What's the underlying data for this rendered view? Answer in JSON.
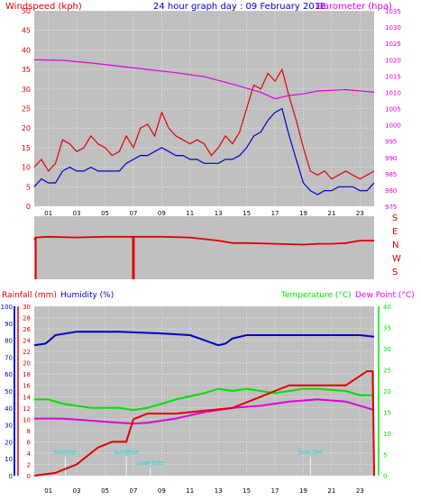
{
  "title": "24 hour graph day : 09 February 2018",
  "panel1": {
    "left_label": "Windspeed (kph)",
    "right_label": "Barometer (hpa)"
  },
  "panel3": {
    "label_rain": "Rainfall (mm)",
    "label_hum": "Humidity (%)",
    "label_temp": "Temperature (°C)",
    "label_dew": "Dew Point (°C)"
  },
  "colors": {
    "red": "#e00000",
    "blue": "#0000c8",
    "magenta": "#e000e0",
    "green": "#00e000",
    "gray": "#c0c0c0",
    "cyan": "#00e0e0"
  },
  "chart_data": [
    {
      "type": "line",
      "xlim": [
        0,
        24
      ],
      "x_ticks": [
        "01",
        "03",
        "05",
        "07",
        "09",
        "11",
        "13",
        "15",
        "17",
        "19",
        "21",
        "23"
      ],
      "x_tick_values": [
        1,
        3,
        5,
        7,
        9,
        11,
        13,
        15,
        17,
        19,
        21,
        23
      ],
      "y_left": {
        "label": "Windspeed (kph)",
        "ylim": [
          0,
          50
        ],
        "ticks": [
          0,
          5,
          10,
          15,
          20,
          25,
          30,
          35,
          40,
          45,
          50
        ]
      },
      "y_right": {
        "label": "Barometer (hpa)",
        "ylim": [
          975,
          1035
        ],
        "ticks": [
          975,
          980,
          985,
          990,
          995,
          1000,
          1005,
          1010,
          1015,
          1020,
          1025,
          1030,
          1035
        ]
      },
      "series": [
        {
          "color": "red",
          "axis": "left",
          "x": [
            0,
            0.5,
            1,
            1.5,
            2,
            2.5,
            3,
            3.5,
            4,
            4.5,
            5,
            5.5,
            6,
            6.5,
            7,
            7.5,
            8,
            8.5,
            9,
            9.5,
            10,
            10.5,
            11,
            11.5,
            12,
            12.5,
            13,
            13.5,
            14,
            14.5,
            15,
            15.5,
            16,
            16.5,
            17,
            17.5,
            18,
            18.5,
            19,
            19.5,
            20,
            20.5,
            21,
            21.5,
            22,
            22.5,
            23,
            23.5,
            24
          ],
          "y": [
            10,
            12,
            9,
            11,
            17,
            16,
            14,
            15,
            18,
            16,
            15,
            13,
            14,
            18,
            15,
            20,
            21,
            18,
            24,
            20,
            18,
            17,
            16,
            17,
            16,
            13,
            15,
            18,
            16,
            19,
            25,
            31,
            30,
            34,
            32,
            35,
            28,
            22,
            15,
            9,
            8,
            9,
            7,
            8,
            9,
            8,
            7,
            8,
            9
          ]
        },
        {
          "color": "blue",
          "axis": "left",
          "x": [
            0,
            0.5,
            1,
            1.5,
            2,
            2.5,
            3,
            3.5,
            4,
            4.5,
            5,
            5.5,
            6,
            6.5,
            7,
            7.5,
            8,
            8.5,
            9,
            9.5,
            10,
            10.5,
            11,
            11.5,
            12,
            12.5,
            13,
            13.5,
            14,
            14.5,
            15,
            15.5,
            16,
            16.5,
            17,
            17.5,
            18,
            18.5,
            19,
            19.5,
            20,
            20.5,
            21,
            21.5,
            22,
            22.5,
            23,
            23.5,
            24
          ],
          "y": [
            5,
            7,
            6,
            6,
            9,
            10,
            9,
            9,
            10,
            9,
            9,
            9,
            9,
            11,
            12,
            13,
            13,
            14,
            15,
            14,
            13,
            13,
            12,
            12,
            11,
            11,
            11,
            12,
            12,
            13,
            15,
            18,
            19,
            22,
            24,
            25,
            18,
            12,
            6,
            4,
            3,
            4,
            4,
            5,
            5,
            5,
            4,
            4,
            6
          ]
        },
        {
          "color": "magenta",
          "axis": "right",
          "x": [
            0,
            2,
            4,
            6,
            8,
            10,
            12,
            14,
            16,
            17,
            18,
            19,
            20,
            22,
            24
          ],
          "y": [
            1020,
            1019.8,
            1019,
            1018,
            1017,
            1016,
            1014.8,
            1012.5,
            1010,
            1008,
            1009,
            1009.5,
            1010.4,
            1010.8,
            1010
          ]
        }
      ]
    },
    {
      "type": "line",
      "xlim": [
        0,
        24
      ],
      "y_right_labels": [
        "S",
        "E",
        "N",
        "W",
        "S"
      ],
      "series": [
        {
          "color": "red",
          "x": [
            0,
            0.1,
            1,
            3,
            5,
            7,
            9,
            11,
            13,
            14,
            15,
            17,
            19,
            20,
            21,
            22,
            23,
            24
          ],
          "y": [
            5,
            5.3,
            5.4,
            5.3,
            5.4,
            5.4,
            5.4,
            5.3,
            4.9,
            4.6,
            4.6,
            4.5,
            4.4,
            4.5,
            4.5,
            4.6,
            4.9,
            4.9
          ],
          "note": "y in 0-8 index of S,E,N,W,S scaled to panel"
        }
      ]
    },
    {
      "type": "line",
      "xlim": [
        0,
        24
      ],
      "x_ticks": [
        "01",
        "03",
        "05",
        "07",
        "09",
        "11",
        "13",
        "15",
        "17",
        "19",
        "21",
        "23"
      ],
      "x_tick_values": [
        1,
        3,
        5,
        7,
        9,
        11,
        13,
        15,
        17,
        19,
        21,
        23
      ],
      "y_rain": {
        "label": "Rainfall (mm)",
        "ylim": [
          0,
          30
        ],
        "ticks": [
          0,
          2,
          4,
          6,
          8,
          10,
          12,
          14,
          16,
          18,
          20,
          22,
          24,
          26,
          28,
          30
        ]
      },
      "y_hum": {
        "label": "Humidity (%)",
        "ylim": [
          0,
          100
        ],
        "ticks": [
          0,
          10,
          20,
          30,
          40,
          50,
          60,
          70,
          80,
          90,
          100
        ]
      },
      "y_temp": {
        "label": "Temperature (°C)",
        "ylim": [
          0,
          40
        ],
        "ticks": [
          0,
          5,
          10,
          15,
          20,
          25,
          30,
          35,
          40
        ]
      },
      "annotations": [
        {
          "text": "Sunrise",
          "x": 2.2
        },
        {
          "text": "SunRise",
          "x": 6.5
        },
        {
          "text": "Sun Set",
          "x": 19.5
        },
        {
          "text": "Low tide",
          "x": 8.2
        }
      ],
      "series": [
        {
          "color": "blue",
          "axis": "hum",
          "x": [
            0,
            0.8,
            1.5,
            3,
            6,
            9,
            11,
            12,
            13,
            13.5,
            14,
            15,
            17,
            19,
            21,
            23,
            24
          ],
          "y": [
            77,
            78,
            83,
            85,
            85,
            84,
            83,
            80,
            77,
            78,
            81,
            83,
            83,
            83,
            83,
            83,
            82
          ]
        },
        {
          "color": "green",
          "axis": "temp",
          "x": [
            0,
            1,
            2,
            4,
            6,
            7,
            8,
            10,
            12,
            13,
            14,
            15,
            17,
            19,
            20,
            22,
            23,
            24
          ],
          "y": [
            18,
            18,
            17,
            16,
            16,
            15.5,
            16,
            18,
            19.5,
            20.5,
            20,
            20.5,
            19.5,
            20.5,
            20.5,
            20,
            19,
            19
          ]
        },
        {
          "color": "magenta",
          "axis": "temp",
          "x": [
            0,
            2,
            4,
            6,
            7,
            8,
            10,
            12,
            14,
            16,
            18,
            20,
            22,
            23,
            24
          ],
          "y": [
            13.5,
            13.5,
            13,
            12.5,
            12.3,
            12.5,
            13.5,
            15,
            16,
            16.5,
            17.5,
            18,
            17.5,
            16.5,
            15.5
          ]
        },
        {
          "color": "red",
          "axis": "rain",
          "x": [
            0,
            1.5,
            2,
            3,
            3.5,
            4.5,
            5.5,
            6.5,
            7,
            8,
            10,
            12,
            14,
            16,
            17,
            18,
            19,
            22,
            23.5,
            23.9,
            24
          ],
          "y": [
            0,
            0.5,
            1,
            2,
            3,
            5,
            6,
            6,
            10,
            11,
            11,
            11.5,
            12,
            14,
            15,
            16,
            16,
            16,
            18.5,
            18.5,
            0
          ]
        }
      ]
    }
  ]
}
